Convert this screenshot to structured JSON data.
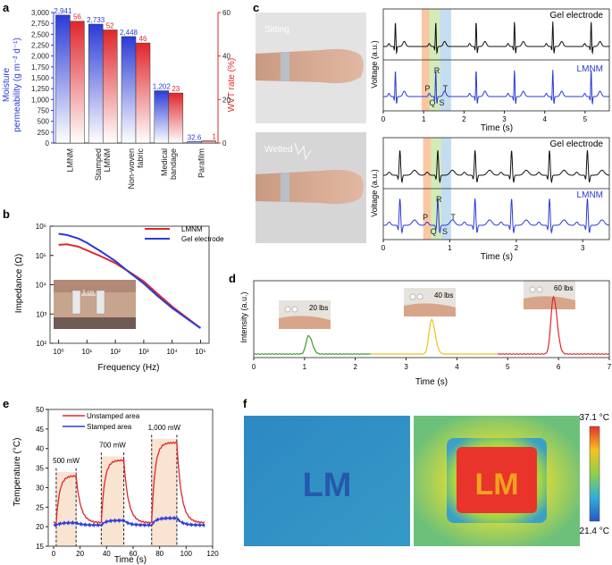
{
  "panels": {
    "a": "a",
    "b": "b",
    "c": "c",
    "d": "d",
    "e": "e",
    "f": "f"
  },
  "colors": {
    "blue": "#2b3bd6",
    "red": "#e0262b",
    "green": "#3a9a2a",
    "yellow": "#e6c51c",
    "black": "#111111"
  },
  "chart_data": [
    {
      "id": "a",
      "type": "bar",
      "categories": [
        "LMNM",
        "Stamped LMNM",
        "Non-woven fabric",
        "Medical bandage",
        "Parafilm"
      ],
      "category_lines": [
        [
          "LMNM"
        ],
        [
          "Stamped",
          "LMNM"
        ],
        [
          "Non-woven",
          "fabric"
        ],
        [
          "Medical",
          "bandage"
        ],
        [
          "Parafilm"
        ]
      ],
      "series": [
        {
          "name": "Moisture permeability",
          "axis": "left",
          "values": [
            2941,
            2733,
            2448,
            1202,
            32.6
          ],
          "labels": [
            "2,941",
            "2,733",
            "2,448",
            "1,202",
            "32.6"
          ]
        },
        {
          "name": "WVT rate",
          "axis": "right",
          "values": [
            56,
            52,
            46,
            23,
            1
          ],
          "labels": [
            "56",
            "52",
            "46",
            "23",
            "1"
          ]
        }
      ],
      "ylabel_left": [
        "Moisture",
        "permeability (g m⁻² d⁻¹)"
      ],
      "ylabel_right": "WVT rate (%)",
      "yticks_left": [
        "0",
        "250",
        "500",
        "750",
        "1,000",
        "1,250",
        "1,500",
        "1,750",
        "2,000",
        "2,250",
        "2,500",
        "2,750",
        "3,000"
      ],
      "ylim_left": [
        0,
        3000
      ],
      "yticks_right": [
        "0",
        "20",
        "40",
        "60"
      ],
      "ylim_right": [
        0,
        60
      ]
    },
    {
      "id": "b",
      "type": "line",
      "xlabel": "Frequency (Hz)",
      "ylabel": "Impedance (Ω)",
      "xscale": "log",
      "yscale": "log",
      "xlim": [
        0.5,
        200000
      ],
      "ylim": [
        100,
        1000000
      ],
      "xtick_labels": [
        "10⁰",
        "10¹",
        "10²",
        "10³",
        "10⁴",
        "10⁵"
      ],
      "ytick_labels": [
        "10²",
        "10³",
        "10⁴",
        "10⁵",
        "10⁶"
      ],
      "inset_label": "5 cm",
      "series": [
        {
          "name": "LMNM",
          "color": "red",
          "x": [
            1,
            2,
            5,
            10,
            30,
            100,
            300,
            1000,
            3000,
            10000,
            30000,
            100000
          ],
          "y": [
            230000,
            240000,
            200000,
            150000,
            95000,
            55000,
            28000,
            13000,
            5000,
            1800,
            800,
            330
          ]
        },
        {
          "name": "Gel electrode",
          "color": "blue",
          "x": [
            1,
            2,
            5,
            10,
            30,
            100,
            300,
            1000,
            3000,
            10000,
            30000,
            100000
          ],
          "y": [
            550000,
            500000,
            380000,
            270000,
            140000,
            65000,
            27000,
            11000,
            4200,
            1600,
            750,
            330
          ]
        }
      ]
    },
    {
      "id": "c1",
      "type": "line",
      "condition": "Sitting",
      "xlabel": "Time (s)",
      "ylabel": "Voltage (a.u.)",
      "xlim": [
        0,
        5.6
      ],
      "xtick_labels": [
        "0",
        "1",
        "2",
        "3",
        "4",
        "5"
      ],
      "beat_times": [
        0.3,
        1.3,
        2.3,
        3.25,
        4.2,
        5.15
      ],
      "highlight_bands": [
        [
          0.95,
          1.14
        ],
        [
          1.14,
          1.4
        ],
        [
          1.4,
          1.68
        ]
      ],
      "series": [
        {
          "name": "Gel electrode",
          "color": "black"
        },
        {
          "name": "LMNM",
          "color": "blue"
        }
      ],
      "wave_labels": [
        "P",
        "Q",
        "R",
        "S",
        "T"
      ]
    },
    {
      "id": "c2",
      "type": "line",
      "condition": "Wetted",
      "xlabel": "Time (s)",
      "ylabel": "Voltage (a.u.)",
      "xlim": [
        0,
        3.4
      ],
      "xtick_labels": [
        "0",
        "1",
        "2",
        "3"
      ],
      "beat_times": [
        0.25,
        0.82,
        1.38,
        1.93,
        2.5,
        3.07
      ],
      "highlight_bands": [
        [
          0.6,
          0.72
        ],
        [
          0.72,
          0.87
        ],
        [
          0.87,
          1.02
        ]
      ],
      "series": [
        {
          "name": "Gel electrode",
          "color": "black"
        },
        {
          "name": "LMNM",
          "color": "blue"
        }
      ],
      "wave_labels": [
        "P",
        "Q",
        "R",
        "S",
        "T"
      ]
    },
    {
      "id": "d",
      "type": "line",
      "xlabel": "Time (s)",
      "ylabel": "Intensity (a.u.)",
      "xlim": [
        0,
        7
      ],
      "xtick_labels": [
        "0",
        "1",
        "2",
        "3",
        "4",
        "5",
        "6",
        "7"
      ],
      "series": [
        {
          "name": "20 lbs",
          "color": "green",
          "x_range": [
            0,
            2.3
          ],
          "peak_time": 1.08,
          "peak": 0.25
        },
        {
          "name": "40 lbs",
          "color": "yellow",
          "x_range": [
            2.3,
            4.8
          ],
          "peak_time": 3.5,
          "peak": 0.47
        },
        {
          "name": "60 lbs",
          "color": "red",
          "x_range": [
            4.8,
            7
          ],
          "peak_time": 5.9,
          "peak": 0.78
        }
      ]
    },
    {
      "id": "e",
      "type": "line",
      "xlabel": "Time (s)",
      "ylabel": "Temperature (°C)",
      "xlim": [
        -4,
        120
      ],
      "ylim": [
        15,
        50
      ],
      "xtick_labels": [
        "0",
        "20",
        "40",
        "60",
        "80",
        "100",
        "120"
      ],
      "ytick_labels": [
        "15",
        "20",
        "25",
        "30",
        "35",
        "40",
        "45",
        "50"
      ],
      "heating_windows": [
        {
          "label": "500 mW",
          "start": 2,
          "end": 17,
          "peak": 33
        },
        {
          "label": "700 mW",
          "start": 36,
          "end": 53,
          "peak": 37
        },
        {
          "label": "1,000 mW",
          "start": 74,
          "end": 93,
          "peak": 41.5
        }
      ],
      "series": [
        {
          "name": "Unstamped area",
          "color": "red"
        },
        {
          "name": "Stamped area",
          "color": "blue"
        }
      ]
    },
    {
      "id": "f",
      "type": "heatmap",
      "colorbar_max": "37.1 °C",
      "colorbar_min": "21.4 °C",
      "pattern_text": "LM"
    }
  ]
}
